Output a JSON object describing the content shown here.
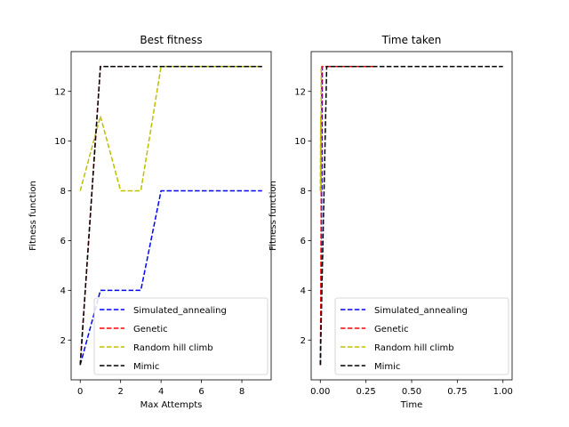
{
  "chart_data": [
    {
      "type": "line",
      "title": "Best fitness",
      "xlabel": "Max Attempts",
      "ylabel": "Fitness function",
      "xlim": [
        -0.45,
        9.45
      ],
      "ylim": [
        0.4,
        13.6
      ],
      "xticks": [
        0,
        2,
        4,
        6,
        8
      ],
      "yticks": [
        2,
        4,
        6,
        8,
        10,
        12
      ],
      "grid": false,
      "legend_position": "lower-right",
      "series": [
        {
          "name": "Simulated_annealing",
          "color": "#0000ff",
          "x": [
            0,
            1,
            2,
            3,
            4,
            5,
            6,
            7,
            8,
            9
          ],
          "y": [
            1,
            4,
            4,
            4,
            8,
            8,
            8,
            8,
            8,
            8
          ]
        },
        {
          "name": "Genetic",
          "color": "#ff0000",
          "x": [
            0,
            1,
            2,
            3,
            4,
            5,
            6,
            7,
            8,
            9
          ],
          "y": [
            1,
            13,
            13,
            13,
            13,
            13,
            13,
            13,
            13,
            13
          ]
        },
        {
          "name": "Random hill climb",
          "color": "#bfbf00",
          "x": [
            0,
            1,
            2,
            3,
            4,
            5,
            6,
            7,
            8,
            9
          ],
          "y": [
            8,
            11,
            8,
            8,
            13,
            13,
            13,
            13,
            13,
            13
          ]
        },
        {
          "name": "Mimic",
          "color": "#000000",
          "x": [
            0,
            1,
            2,
            3,
            4,
            5,
            6,
            7,
            8,
            9
          ],
          "y": [
            1,
            13,
            13,
            13,
            13,
            13,
            13,
            13,
            13,
            13
          ]
        }
      ]
    },
    {
      "type": "line",
      "title": "Time taken",
      "xlabel": "Time",
      "ylabel": "Fitness function",
      "xlim": [
        -0.05,
        1.05
      ],
      "ylim": [
        0.4,
        13.6
      ],
      "xticks": [
        0.0,
        0.25,
        0.5,
        0.75,
        1.0
      ],
      "xtick_labels": [
        "0.00",
        "0.25",
        "0.50",
        "0.75",
        "1.00"
      ],
      "yticks": [
        2,
        4,
        6,
        8,
        10,
        12
      ],
      "grid": false,
      "legend_position": "lower-right",
      "series": [
        {
          "name": "Simulated_annealing",
          "color": "#0000ff",
          "x": [
            0.001,
            0.003,
            0.005,
            0.007,
            0.009,
            0.011,
            0.013,
            0.015,
            0.3
          ],
          "y": [
            1,
            4,
            4,
            8,
            8,
            13,
            13,
            13,
            13
          ]
        },
        {
          "name": "Genetic",
          "color": "#ff0000",
          "x": [
            0.001,
            0.008,
            0.02,
            0.1,
            0.3
          ],
          "y": [
            1,
            13,
            13,
            13,
            13
          ]
        },
        {
          "name": "Random hill climb",
          "color": "#bfbf00",
          "x": [
            0.0,
            0.002,
            0.003,
            0.004,
            0.005,
            0.006,
            0.01
          ],
          "y": [
            8,
            11,
            8,
            8,
            13,
            13,
            13
          ]
        },
        {
          "name": "Mimic",
          "color": "#000000",
          "x": [
            0.0,
            0.035,
            0.05,
            0.2,
            0.5,
            1.0
          ],
          "y": [
            1,
            13,
            13,
            13,
            13,
            13
          ]
        }
      ]
    }
  ]
}
